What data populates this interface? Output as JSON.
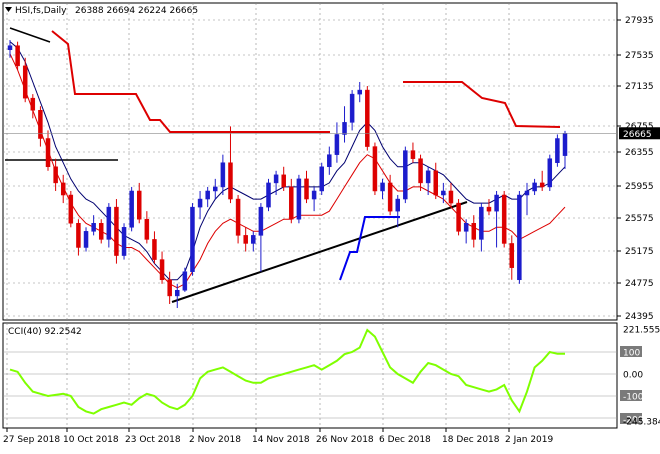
{
  "chart_data": [
    {
      "type": "candlestick",
      "symbol_label": "HSI,fs,Daily",
      "ohlc_text": "26388 26694 26224 26665",
      "y_ticks": [
        "27935",
        "27535",
        "27135",
        "26755",
        "26355",
        "25955",
        "25575",
        "25175",
        "24775",
        "24395"
      ],
      "ylim": [
        24395,
        27935
      ],
      "x_ticks": [
        "27 Sep 2018",
        "10 Oct 2018",
        "23 Oct 2018",
        "2 Nov 2018",
        "14 Nov 2018",
        "26 Nov 2018",
        "6 Dec 2018",
        "18 Dec 2018",
        "2 Jan 2019"
      ],
      "last_price_label": "26665",
      "last_price": 26665,
      "colors": {
        "up": "#1c1ccc",
        "down": "#dd0000",
        "ma_fast": "#000070",
        "ma_slow": "#dd0000",
        "trendline": "#000000",
        "resistance": "#dd0000",
        "support": "#0000ee"
      },
      "candles": [
        [
          27700,
          27820,
          27600,
          27750
        ],
        [
          27750,
          27800,
          27450,
          27500
        ],
        [
          27500,
          27600,
          27050,
          27100
        ],
        [
          27100,
          27150,
          26850,
          26950
        ],
        [
          26950,
          27000,
          26500,
          26600
        ],
        [
          26600,
          26700,
          26200,
          26250
        ],
        [
          26250,
          26350,
          25950,
          26050
        ],
        [
          26050,
          26150,
          25800,
          25900
        ],
        [
          25900,
          25950,
          25500,
          25550
        ],
        [
          25550,
          25600,
          25150,
          25250
        ],
        [
          25250,
          25500,
          25200,
          25450
        ],
        [
          25450,
          25650,
          25400,
          25550
        ],
        [
          25550,
          25600,
          25300,
          25350
        ],
        [
          25350,
          25800,
          25250,
          25750
        ],
        [
          25750,
          25850,
          25050,
          25150
        ],
        [
          25150,
          25550,
          25100,
          25500
        ],
        [
          25500,
          26000,
          25450,
          25950
        ],
        [
          25950,
          26050,
          25550,
          25600
        ],
        [
          25600,
          25700,
          25300,
          25350
        ],
        [
          25350,
          25450,
          25050,
          25100
        ],
        [
          25100,
          25200,
          24800,
          24850
        ],
        [
          24850,
          24950,
          24550,
          24650
        ],
        [
          24650,
          24800,
          24500,
          24720
        ],
        [
          24720,
          25000,
          24700,
          24950
        ],
        [
          24950,
          25800,
          24900,
          25750
        ],
        [
          25750,
          25950,
          25600,
          25850
        ],
        [
          25850,
          26000,
          25750,
          25950
        ],
        [
          25950,
          26100,
          25850,
          26000
        ],
        [
          26000,
          26400,
          25900,
          26300
        ],
        [
          26300,
          26750,
          25800,
          25850
        ],
        [
          25850,
          25900,
          25300,
          25400
        ],
        [
          25400,
          25500,
          25200,
          25300
        ],
        [
          25300,
          25450,
          25200,
          25400
        ],
        [
          25400,
          25800,
          24950,
          25750
        ],
        [
          25750,
          26100,
          25700,
          26050
        ],
        [
          26050,
          26200,
          25900,
          26150
        ],
        [
          26150,
          26250,
          25950,
          26000
        ],
        [
          26000,
          26100,
          25550,
          25600
        ],
        [
          25600,
          26150,
          25550,
          26100
        ],
        [
          26100,
          26200,
          25800,
          25850
        ],
        [
          25850,
          26000,
          25700,
          25950
        ],
        [
          25950,
          26300,
          25900,
          26250
        ],
        [
          26250,
          26500,
          26150,
          26400
        ],
        [
          26400,
          26800,
          26300,
          26650
        ],
        [
          26650,
          27000,
          26550,
          26800
        ],
        [
          26800,
          27200,
          26700,
          27150
        ],
        [
          27150,
          27300,
          27050,
          27200
        ],
        [
          27200,
          27250,
          26450,
          26500
        ],
        [
          26500,
          26550,
          25900,
          25950
        ],
        [
          25950,
          26100,
          25850,
          26050
        ],
        [
          26050,
          26150,
          25650,
          25700
        ],
        [
          25700,
          25900,
          25500,
          25850
        ],
        [
          25850,
          26500,
          25800,
          26450
        ],
        [
          26450,
          26550,
          26300,
          26350
        ],
        [
          26350,
          26400,
          25950,
          26050
        ],
        [
          26050,
          26250,
          25900,
          26200
        ],
        [
          26200,
          26300,
          25850,
          25900
        ],
        [
          25900,
          26050,
          25800,
          25950
        ],
        [
          25950,
          26050,
          25750,
          25800
        ],
        [
          25800,
          25850,
          25400,
          25450
        ],
        [
          25450,
          25600,
          25300,
          25550
        ],
        [
          25550,
          25650,
          25250,
          25350
        ],
        [
          25350,
          25800,
          25200,
          25750
        ],
        [
          25750,
          25850,
          25650,
          25700
        ],
        [
          25700,
          25950,
          25250,
          25900
        ],
        [
          25900,
          25950,
          25250,
          25300
        ],
        [
          25300,
          25400,
          24850,
          25000
        ],
        [
          24850,
          25950,
          24800,
          25900
        ],
        [
          25900,
          26050,
          25650,
          25950
        ],
        [
          25950,
          26100,
          25900,
          26050
        ],
        [
          26050,
          26200,
          25950,
          26000
        ],
        [
          26000,
          26400,
          25950,
          26350
        ],
        [
          26300,
          26650,
          26250,
          26600
        ],
        [
          26388,
          26694,
          26224,
          26665
        ]
      ],
      "ma_fast": [
        27800,
        27720,
        27550,
        27300,
        27050,
        26800,
        26500,
        26300,
        26100,
        25950,
        25850,
        25800,
        25700,
        25600,
        25500,
        25400,
        25350,
        25300,
        25200,
        25050,
        24950,
        24850,
        24850,
        24950,
        25200,
        25500,
        25700,
        25850,
        25950,
        26000,
        25950,
        25900,
        25850,
        25850,
        25900,
        25950,
        26000,
        26000,
        26000,
        26000,
        26000,
        26000,
        26050,
        26200,
        26300,
        26500,
        26700,
        26800,
        26700,
        26500,
        26350,
        26250,
        26250,
        26300,
        26300,
        26250,
        26200,
        26150,
        26050,
        25950,
        25850,
        25800,
        25800,
        25800,
        25850,
        25900,
        25850,
        25850,
        25950,
        26000,
        26000,
        26050,
        26150,
        26250
      ],
      "ma_slow": [
        27650,
        27450,
        27200,
        26950,
        26700,
        26450,
        26200,
        26000,
        25800,
        25650,
        25550,
        25500,
        25450,
        25400,
        25300,
        25250,
        25250,
        25200,
        25100,
        25000,
        24900,
        24800,
        24750,
        24800,
        24950,
        25100,
        25300,
        25450,
        25550,
        25600,
        25550,
        25500,
        25450,
        25450,
        25500,
        25550,
        25600,
        25600,
        25650,
        25650,
        25650,
        25650,
        25700,
        25850,
        26000,
        26150,
        26300,
        26400,
        26350,
        26200,
        26050,
        25950,
        25950,
        26000,
        26000,
        25950,
        25900,
        25850,
        25750,
        25650,
        25550,
        25500,
        25450,
        25450,
        25500,
        25500,
        25450,
        25350,
        25400,
        25450,
        25500,
        25550,
        25650,
        25750
      ]
    },
    {
      "type": "line",
      "indicator_label": "CCI(40) 92.2542",
      "y_ticks": [
        "221.5552",
        "100",
        "0.00",
        "-100",
        "-200",
        "-245.384"
      ],
      "ylim": [
        -245.384,
        221.5552
      ],
      "levels": [
        100,
        0,
        -100,
        -200
      ],
      "color": "#7fff00",
      "values": [
        20,
        10,
        -40,
        -80,
        -90,
        -100,
        -95,
        -90,
        -100,
        -150,
        -170,
        -180,
        -160,
        -150,
        -140,
        -130,
        -140,
        -110,
        -90,
        -100,
        -130,
        -150,
        -160,
        -140,
        -100,
        -20,
        10,
        20,
        30,
        10,
        -10,
        -30,
        -40,
        -40,
        -20,
        -10,
        0,
        10,
        20,
        30,
        40,
        20,
        40,
        60,
        90,
        100,
        120,
        200,
        170,
        100,
        30,
        0,
        -20,
        -40,
        10,
        50,
        40,
        20,
        0,
        -10,
        -50,
        -60,
        -70,
        -80,
        -70,
        -50,
        -120,
        -170,
        -80,
        30,
        60,
        100,
        92,
        92
      ]
    }
  ]
}
